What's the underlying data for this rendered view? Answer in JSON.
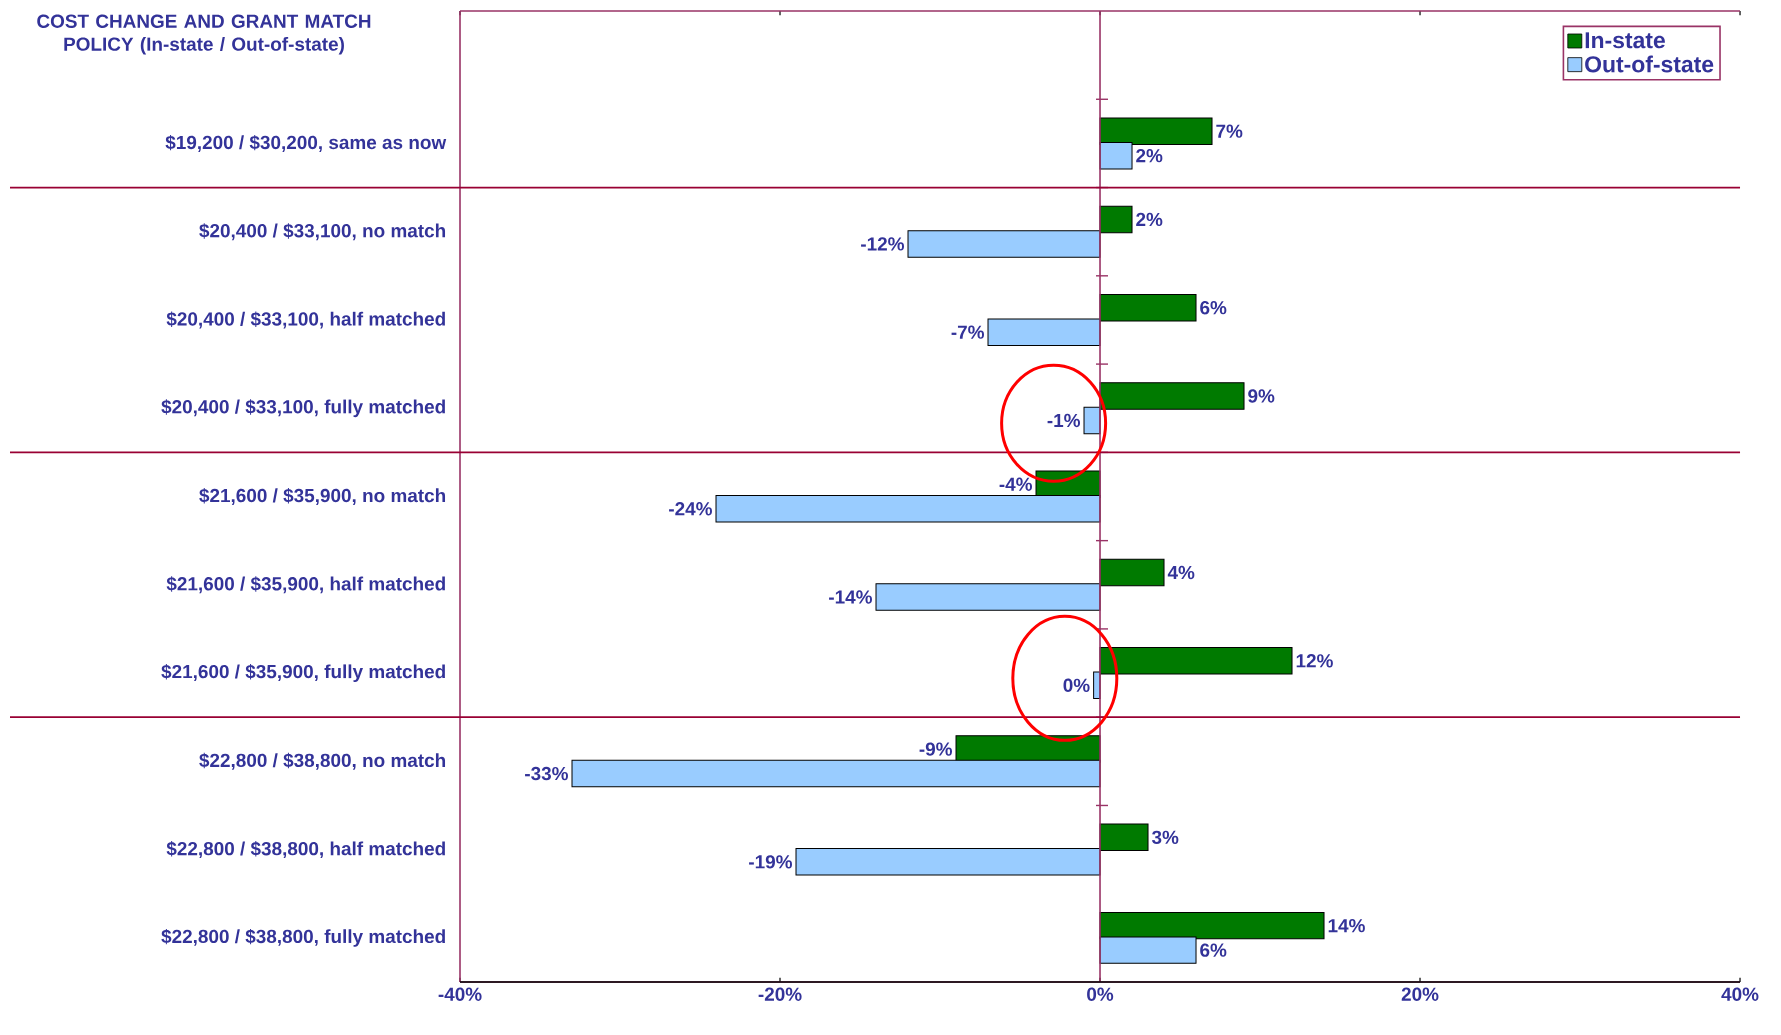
{
  "chart_data": {
    "type": "bar",
    "orientation": "horizontal",
    "ylabel": "COST CHANGE AND GRANT MATCH POLICY (In-state / Out-of-state)",
    "categories": [
      "$19,200 / $30,200, same as now",
      "$20,400 / $33,100, no match",
      "$20,400 / $33,100, half matched",
      "$20,400 / $33,100, fully matched",
      "$21,600 / $35,900, no match",
      "$21,600 / $35,900, half matched",
      "$21,600 / $35,900, fully matched",
      "$22,800 / $38,800, no match",
      "$22,800 / $38,800, half matched",
      "$22,800 / $38,800, fully matched"
    ],
    "series": [
      {
        "name": "In-state",
        "color": "#007a00",
        "values": [
          7,
          2,
          6,
          9,
          -4,
          4,
          12,
          -9,
          3,
          14
        ],
        "value_labels": [
          "7%",
          "2%",
          "6%",
          "9%",
          "-4%",
          "4%",
          "12%",
          "-9%",
          "3%",
          "14%"
        ]
      },
      {
        "name": "Out-of-state",
        "color": "#99ccff",
        "values": [
          2,
          -12,
          -7,
          -1,
          -24,
          -14,
          -0.4,
          -33,
          -19,
          6
        ],
        "value_labels": [
          "2%",
          "-12%",
          "-7%",
          "-1%",
          "-24%",
          "-14%",
          "0%",
          "-33%",
          "-19%",
          "6%"
        ]
      }
    ],
    "xlim": [
      -40,
      40
    ],
    "xticks": [
      {
        "value": -40,
        "label": "-40%"
      },
      {
        "value": -20,
        "label": "-20%"
      },
      {
        "value": 0,
        "label": "0%"
      },
      {
        "value": 20,
        "label": "20%"
      },
      {
        "value": 40,
        "label": "40%"
      }
    ],
    "ref_lines": [
      {
        "axis": "x",
        "value": 0,
        "color": "#993366"
      }
    ],
    "legend": "top right",
    "grid": false
  }
}
